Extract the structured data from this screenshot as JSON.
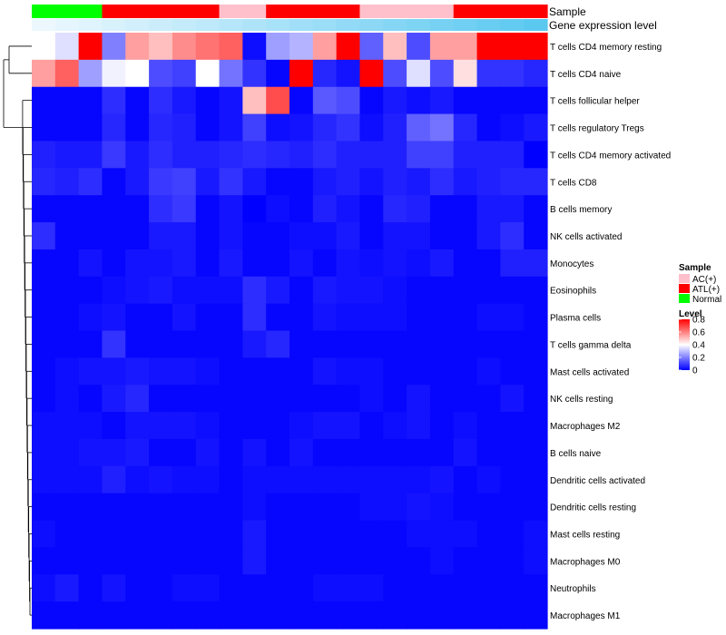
{
  "chart_data": {
    "type": "heatmap",
    "annotation_tracks": [
      "Sample",
      "Gene expression level"
    ],
    "rows": [
      "T cells CD4 memory resting",
      "T cells CD4 naive",
      "T cells follicular helper",
      "T cells regulatory  Tregs",
      "T cells CD4 memory activated",
      "T cells CD8",
      "B cells memory",
      "NK cells activated",
      "Monocytes",
      "Eosinophils",
      "Plasma cells",
      "T cells gamma delta",
      "Mast cells activated",
      "NK cells resting",
      "Macrophages M2",
      "B cells naive",
      "Dendritic cells activated",
      "Dendritic cells resting",
      "Mast cells resting",
      "Macrophages M0",
      "Neutrophils",
      "Macrophages M1"
    ],
    "sample_groups": [
      "Normal",
      "Normal",
      "Normal",
      "ATL(+)",
      "ATL(+)",
      "ATL(+)",
      "ATL(+)",
      "ATL(+)",
      "AC(+)",
      "AC(+)",
      "ATL(+)",
      "ATL(+)",
      "ATL(+)",
      "ATL(+)",
      "AC(+)",
      "AC(+)",
      "AC(+)",
      "AC(+)",
      "ATL(+)",
      "ATL(+)",
      "ATL(+)",
      "ATL(+)"
    ],
    "expression_level": [
      0.05,
      0.09,
      0.14,
      0.18,
      0.23,
      0.27,
      0.32,
      0.36,
      0.41,
      0.45,
      0.5,
      0.55,
      0.59,
      0.64,
      0.68,
      0.73,
      0.77,
      0.82,
      0.86,
      0.91,
      0.95,
      1.0
    ],
    "values": [
      [
        0.4,
        0.35,
        0.8,
        0.2,
        0.55,
        0.5,
        0.58,
        0.62,
        0.65,
        0.02,
        0.25,
        0.28,
        0.55,
        0.8,
        0.15,
        0.5,
        0.12,
        0.55,
        0.55,
        0.8,
        0.8,
        0.8
      ],
      [
        0.55,
        0.65,
        0.25,
        0.38,
        0.4,
        0.12,
        0.1,
        0.4,
        0.18,
        0.08,
        0.01,
        0.8,
        0.06,
        0.03,
        0.8,
        0.12,
        0.35,
        0.12,
        0.45,
        0.08,
        0.08,
        0.06
      ],
      [
        0.01,
        0.01,
        0.01,
        0.07,
        0.01,
        0.07,
        0.04,
        0.01,
        0.03,
        0.5,
        0.68,
        0.01,
        0.14,
        0.12,
        0.01,
        0.04,
        0.02,
        0.04,
        0.01,
        0.01,
        0.01,
        0.01
      ],
      [
        0.01,
        0.01,
        0.01,
        0.06,
        0.01,
        0.06,
        0.05,
        0.01,
        0.03,
        0.1,
        0.02,
        0.03,
        0.06,
        0.08,
        0.02,
        0.05,
        0.15,
        0.18,
        0.06,
        0.01,
        0.02,
        0.04
      ],
      [
        0.05,
        0.04,
        0.04,
        0.09,
        0.04,
        0.07,
        0.05,
        0.05,
        0.06,
        0.07,
        0.06,
        0.05,
        0.07,
        0.05,
        0.05,
        0.05,
        0.1,
        0.1,
        0.05,
        0.05,
        0.05,
        0.0
      ],
      [
        0.06,
        0.05,
        0.07,
        0.01,
        0.04,
        0.09,
        0.1,
        0.04,
        0.08,
        0.04,
        0.01,
        0.01,
        0.04,
        0.05,
        0.03,
        0.05,
        0.04,
        0.07,
        0.04,
        0.05,
        0.06,
        0.06
      ],
      [
        0.01,
        0.01,
        0.01,
        0.01,
        0.01,
        0.07,
        0.09,
        0.01,
        0.03,
        0.0,
        0.02,
        0.01,
        0.05,
        0.03,
        0.01,
        0.06,
        0.05,
        0.01,
        0.01,
        0.04,
        0.04,
        0.01
      ],
      [
        0.07,
        0.01,
        0.01,
        0.01,
        0.01,
        0.04,
        0.04,
        0.01,
        0.03,
        0.01,
        0.01,
        0.02,
        0.02,
        0.04,
        0.01,
        0.03,
        0.03,
        0.01,
        0.01,
        0.04,
        0.07,
        0.01
      ],
      [
        0.01,
        0.01,
        0.03,
        0.01,
        0.03,
        0.03,
        0.04,
        0.01,
        0.04,
        0.01,
        0.01,
        0.03,
        0.01,
        0.03,
        0.02,
        0.03,
        0.02,
        0.04,
        0.01,
        0.01,
        0.05,
        0.05
      ],
      [
        0.01,
        0.01,
        0.01,
        0.02,
        0.03,
        0.04,
        0.02,
        0.02,
        0.02,
        0.07,
        0.04,
        0.01,
        0.04,
        0.03,
        0.03,
        0.02,
        0.01,
        0.01,
        0.01,
        0.01,
        0.01,
        0.01
      ],
      [
        0.01,
        0.01,
        0.02,
        0.03,
        0.01,
        0.01,
        0.03,
        0.01,
        0.01,
        0.07,
        0.01,
        0.01,
        0.03,
        0.02,
        0.02,
        0.02,
        0.01,
        0.01,
        0.01,
        0.02,
        0.02,
        0.01
      ],
      [
        0.01,
        0.01,
        0.01,
        0.08,
        0.01,
        0.01,
        0.01,
        0.01,
        0.01,
        0.04,
        0.06,
        0.01,
        0.01,
        0.01,
        0.01,
        0.01,
        0.01,
        0.01,
        0.01,
        0.01,
        0.01,
        0.01
      ],
      [
        0.01,
        0.02,
        0.03,
        0.03,
        0.04,
        0.03,
        0.03,
        0.02,
        0.01,
        0.01,
        0.01,
        0.01,
        0.03,
        0.02,
        0.02,
        0.01,
        0.01,
        0.01,
        0.01,
        0.02,
        0.01,
        0.01
      ],
      [
        0.01,
        0.02,
        0.01,
        0.04,
        0.06,
        0.01,
        0.01,
        0.01,
        0.01,
        0.01,
        0.01,
        0.01,
        0.01,
        0.01,
        0.02,
        0.01,
        0.03,
        0.01,
        0.01,
        0.01,
        0.03,
        0.01
      ],
      [
        0.02,
        0.02,
        0.02,
        0.01,
        0.03,
        0.03,
        0.03,
        0.02,
        0.01,
        0.01,
        0.01,
        0.02,
        0.03,
        0.03,
        0.01,
        0.02,
        0.03,
        0.01,
        0.02,
        0.01,
        0.01,
        0.01
      ],
      [
        0.02,
        0.02,
        0.03,
        0.03,
        0.04,
        0.01,
        0.01,
        0.03,
        0.01,
        0.03,
        0.01,
        0.03,
        0.01,
        0.01,
        0.01,
        0.01,
        0.01,
        0.01,
        0.03,
        0.01,
        0.01,
        0.01
      ],
      [
        0.02,
        0.02,
        0.02,
        0.05,
        0.02,
        0.03,
        0.02,
        0.02,
        0.01,
        0.02,
        0.02,
        0.02,
        0.02,
        0.02,
        0.02,
        0.02,
        0.02,
        0.03,
        0.01,
        0.02,
        0.01,
        0.01
      ],
      [
        0.01,
        0.01,
        0.01,
        0.01,
        0.01,
        0.01,
        0.01,
        0.01,
        0.01,
        0.02,
        0.01,
        0.01,
        0.01,
        0.01,
        0.02,
        0.02,
        0.03,
        0.02,
        0.01,
        0.01,
        0.01,
        0.01
      ],
      [
        0.02,
        0.01,
        0.01,
        0.01,
        0.01,
        0.01,
        0.01,
        0.01,
        0.01,
        0.04,
        0.01,
        0.01,
        0.01,
        0.01,
        0.01,
        0.01,
        0.02,
        0.02,
        0.02,
        0.01,
        0.01,
        0.02
      ],
      [
        0.01,
        0.01,
        0.01,
        0.01,
        0.01,
        0.01,
        0.01,
        0.01,
        0.01,
        0.04,
        0.01,
        0.01,
        0.01,
        0.01,
        0.01,
        0.01,
        0.01,
        0.02,
        0.01,
        0.01,
        0.01,
        0.02
      ],
      [
        0.02,
        0.04,
        0.01,
        0.03,
        0.01,
        0.01,
        0.02,
        0.02,
        0.01,
        0.01,
        0.01,
        0.01,
        0.02,
        0.02,
        0.02,
        0.01,
        0.01,
        0.01,
        0.01,
        0.01,
        0.01,
        0.01
      ],
      [
        0.01,
        0.01,
        0.01,
        0.01,
        0.01,
        0.01,
        0.01,
        0.01,
        0.01,
        0.01,
        0.01,
        0.01,
        0.01,
        0.01,
        0.01,
        0.01,
        0.01,
        0.01,
        0.01,
        0.01,
        0.01,
        0.01
      ]
    ],
    "scale": {
      "min": 0,
      "mid": 0.4,
      "max": 0.8
    },
    "legend": {
      "sample_title": "Sample",
      "sample_items": [
        {
          "label": "AC(+)",
          "color": "#ffc0cb"
        },
        {
          "label": "ATL(+)",
          "color": "#ff0000"
        },
        {
          "label": "Normal",
          "color": "#00ff00"
        }
      ],
      "level_title": "Level",
      "level_ticks": [
        {
          "label": "0.8",
          "value": 0.8
        },
        {
          "label": "0.6",
          "value": 0.6
        },
        {
          "label": "0.4",
          "value": 0.4
        },
        {
          "label": "0.2",
          "value": 0.2
        },
        {
          "label": "0",
          "value": 0
        }
      ]
    },
    "colors": {
      "low": "#0000ff",
      "mid": "#ffffff",
      "high": "#ff0000",
      "expr_low": "#f4fbff",
      "expr_high": "#5bc8f0"
    }
  }
}
